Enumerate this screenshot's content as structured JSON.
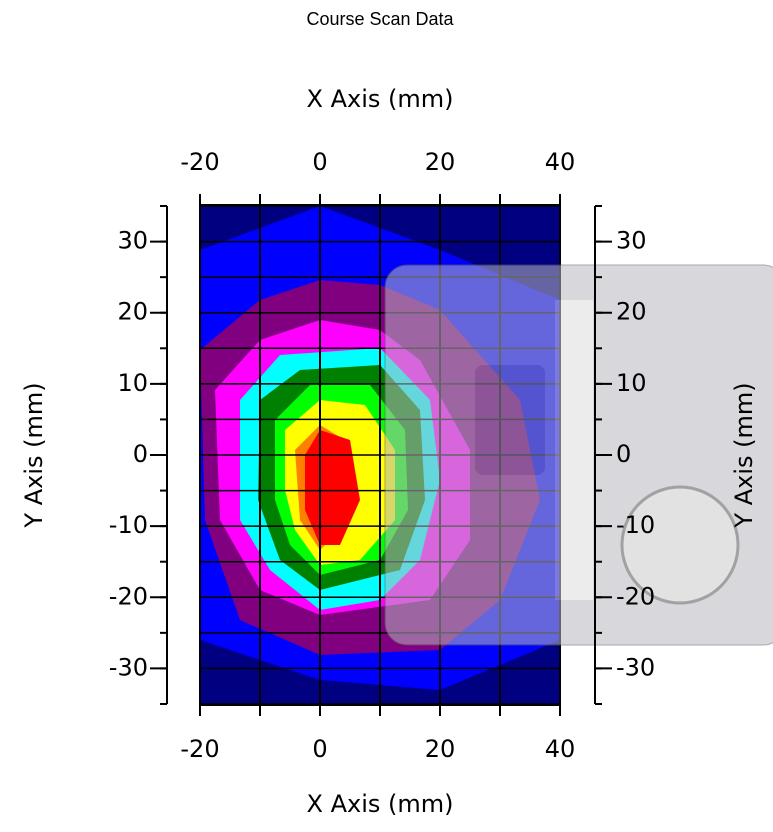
{
  "chart_data": {
    "type": "contour",
    "title": "Course Scan Data",
    "x_label": "X Axis (mm)",
    "y_label": "Y Axis (mm)",
    "xlim": [
      -20,
      40
    ],
    "ylim": [
      -35,
      35
    ],
    "xticks": [
      -20,
      0,
      20,
      40
    ],
    "yticks": [
      -30,
      -20,
      -10,
      0,
      10,
      20,
      30
    ],
    "xgrid": [
      -20,
      -10,
      0,
      10,
      20,
      30,
      40
    ],
    "ygrid": [
      -35,
      -30,
      -25,
      -20,
      -15,
      -10,
      -5,
      0,
      5,
      10,
      15,
      20,
      25,
      30,
      35
    ],
    "level_colors": [
      "#000080",
      "#0000ff",
      "#800080",
      "#ff00ff",
      "#00ffff",
      "#008000",
      "#00ff00",
      "#ffff00",
      "#ff8000",
      "#ff0000"
    ],
    "grid": true
  }
}
